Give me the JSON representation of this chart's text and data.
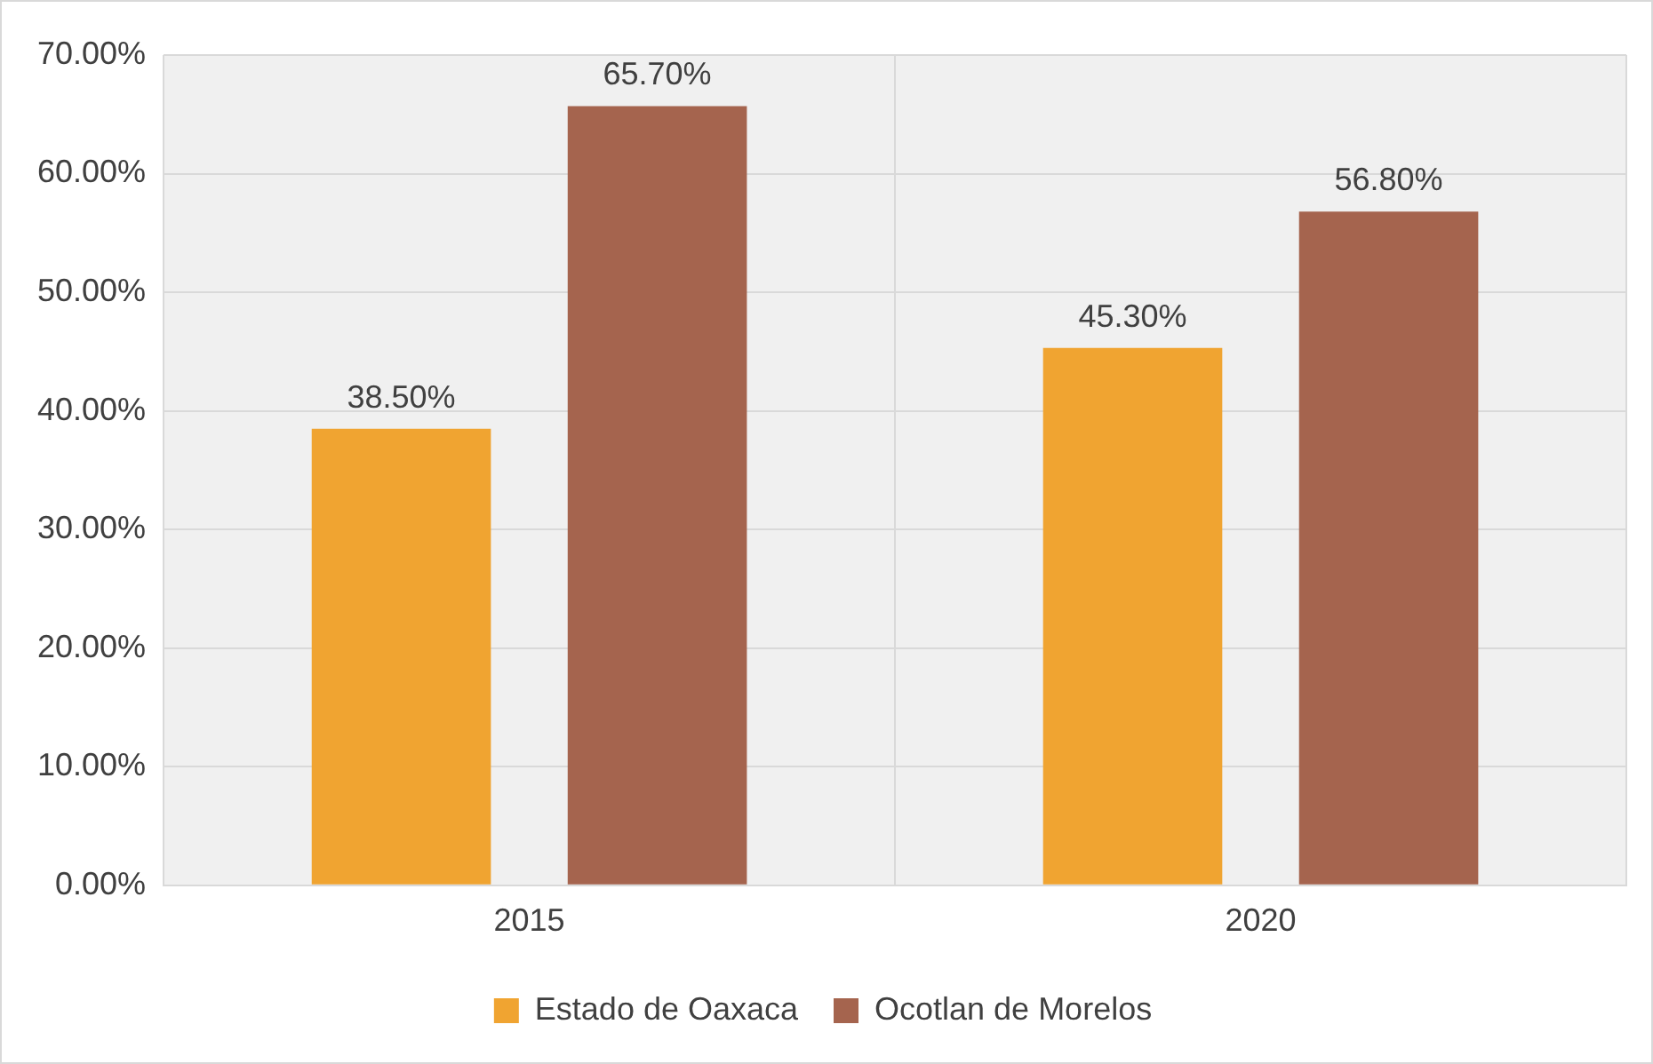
{
  "chart_data": {
    "type": "bar",
    "categories": [
      "2015",
      "2020"
    ],
    "series": [
      {
        "name": "Estado de Oaxaca",
        "color": "#f0a431",
        "values": [
          38.5,
          45.3
        ],
        "value_labels": [
          "38.50%",
          "45.30%"
        ]
      },
      {
        "name": "Ocotlan de Morelos",
        "color": "#a5644e",
        "values": [
          65.7,
          56.8
        ],
        "value_labels": [
          "65.70%",
          "56.80%"
        ]
      }
    ],
    "ylim": [
      0,
      70
    ],
    "yticks": [
      {
        "value": 0,
        "label": "0.00%"
      },
      {
        "value": 10,
        "label": "10.00%"
      },
      {
        "value": 20,
        "label": "20.00%"
      },
      {
        "value": 30,
        "label": "30.00%"
      },
      {
        "value": 40,
        "label": "40.00%"
      },
      {
        "value": 50,
        "label": "50.00%"
      },
      {
        "value": 60,
        "label": "60.00%"
      },
      {
        "value": 70,
        "label": "70.00%"
      }
    ],
    "grid": true,
    "legend": "bottom"
  }
}
